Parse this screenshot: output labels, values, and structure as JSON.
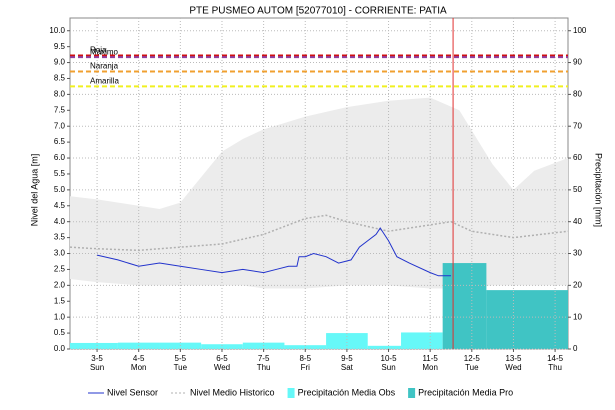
{
  "chart_data": {
    "type": "line",
    "title": "PTE PUSMEO AUTOM  [52077010] - CORRIENTE: PATIA",
    "ylabel": "Nivel del Agua [m]",
    "y2label": "Precipitación [mm]",
    "xlim": [
      2.35,
      14.31
    ],
    "xticks": [
      {
        "value": 3,
        "label": "3-5"
      },
      {
        "value": 4,
        "label": "4-5"
      },
      {
        "value": 5,
        "label": "5-5"
      },
      {
        "value": 6,
        "label": "6-5"
      },
      {
        "value": 7,
        "label": "7-5"
      },
      {
        "value": 8,
        "label": "8-5"
      },
      {
        "value": 9,
        "label": "9-5"
      },
      {
        "value": 10,
        "label": "10-5"
      },
      {
        "value": 11,
        "label": "11-5"
      },
      {
        "value": 12,
        "label": "12-5"
      },
      {
        "value": 13,
        "label": "13-5"
      },
      {
        "value": 14,
        "label": "14-5"
      }
    ],
    "xtick_weekdays": [
      "Sun",
      "Mon",
      "Tue",
      "Wed",
      "Thu",
      "Fri",
      "Sat",
      "Sun",
      "Mon",
      "Tue",
      "Wed",
      "Thu"
    ],
    "ylim": [
      0,
      10.4
    ],
    "yticks": [
      {
        "value": 0,
        "label": "0.0"
      },
      {
        "value": 0.5,
        "label": "0.5"
      },
      {
        "value": 1,
        "label": "1.0"
      },
      {
        "value": 1.5,
        "label": "1.5"
      },
      {
        "value": 2,
        "label": "2.0"
      },
      {
        "value": 2.5,
        "label": "2.5"
      },
      {
        "value": 3,
        "label": "3.0"
      },
      {
        "value": 3.5,
        "label": "3.5"
      },
      {
        "value": 4,
        "label": "4.0"
      },
      {
        "value": 4.5,
        "label": "4.5"
      },
      {
        "value": 5,
        "label": "5.0"
      },
      {
        "value": 5.5,
        "label": "5.5"
      },
      {
        "value": 6,
        "label": "6.0"
      },
      {
        "value": 6.5,
        "label": "6.5"
      },
      {
        "value": 7,
        "label": "7.0"
      },
      {
        "value": 7.5,
        "label": "7.5"
      },
      {
        "value": 8,
        "label": "8.0"
      },
      {
        "value": 8.5,
        "label": "8.5"
      },
      {
        "value": 9,
        "label": "9.0"
      },
      {
        "value": 9.5,
        "label": "9.5"
      },
      {
        "value": 10,
        "label": "10.0"
      }
    ],
    "y2lim": [
      0,
      104
    ],
    "y2ticks": [
      0,
      10,
      20,
      30,
      40,
      50,
      60,
      70,
      80,
      90,
      100
    ],
    "grid": true,
    "now_x": 11.55,
    "now_color": "#e03030",
    "thresholds": [
      {
        "name": "Roja",
        "value": 9.22,
        "color": "#d01010"
      },
      {
        "name": "Máximo",
        "value": 9.17,
        "color": "#9040a0"
      },
      {
        "name": "Naranja",
        "value": 8.72,
        "color": "#f0a030"
      },
      {
        "name": "Amarilla",
        "value": 8.25,
        "color": "#f0f020"
      }
    ],
    "band": {
      "color": "#ececec",
      "x": [
        2.35,
        3,
        4,
        4.5,
        5,
        6,
        6.5,
        7,
        8,
        9,
        10,
        11,
        11.7,
        12.5,
        13,
        13.5,
        14.31
      ],
      "upper": [
        4.8,
        4.7,
        4.5,
        4.4,
        4.6,
        6.2,
        6.6,
        6.9,
        7.3,
        7.6,
        7.8,
        7.9,
        7.5,
        5.8,
        5.0,
        5.6,
        6.0
      ],
      "lower": [
        2.2,
        2.1,
        2.0,
        2.0,
        2.0,
        2.0,
        2.0,
        1.9,
        1.9,
        2.0,
        2.0,
        1.9,
        1.9,
        2.0,
        2.0,
        2.0,
        2.0
      ]
    },
    "series": [
      {
        "name": "Nivel Sensor",
        "color": "#2233cc",
        "style": "solid",
        "x": [
          3,
          3.5,
          4,
          4.5,
          5,
          5.5,
          6,
          6.5,
          7,
          7.3,
          7.6,
          7.8,
          7.85,
          8,
          8.2,
          8.5,
          8.8,
          9.1,
          9.3,
          9.5,
          9.7,
          9.8,
          10,
          10.2,
          10.5,
          11,
          11.2,
          11.5
        ],
        "values": [
          2.95,
          2.8,
          2.6,
          2.7,
          2.6,
          2.5,
          2.4,
          2.5,
          2.4,
          2.5,
          2.6,
          2.6,
          2.9,
          2.9,
          3.0,
          2.9,
          2.7,
          2.8,
          3.2,
          3.4,
          3.6,
          3.8,
          3.4,
          2.9,
          2.7,
          2.4,
          2.3,
          2.3
        ]
      },
      {
        "name": "Nivel Medio Historico",
        "color": "#b0b0b0",
        "style": "dotted",
        "x": [
          2.35,
          3,
          4,
          5,
          6,
          7,
          8,
          8.5,
          9,
          10,
          11,
          11.5,
          12,
          13,
          14.31
        ],
        "values": [
          3.2,
          3.15,
          3.1,
          3.2,
          3.3,
          3.6,
          4.1,
          4.2,
          4.0,
          3.7,
          3.9,
          4.0,
          3.7,
          3.5,
          3.7
        ]
      }
    ],
    "bars": [
      {
        "name": "Precipitación Media Obs",
        "color": "#66f8f8",
        "axis": "y2",
        "bins": [
          2.35,
          3.5,
          4.5,
          5.5,
          6.5,
          7.5,
          8.5,
          9.5,
          10.3,
          11.3
        ],
        "values": [
          1.9,
          2.0,
          2.0,
          1.5,
          2.0,
          1.2,
          5.0,
          1.0,
          5.2
        ]
      },
      {
        "name": "Precipitación Media Pro",
        "color": "#40c4c4",
        "axis": "y2",
        "bins": [
          11.3,
          12.35,
          14.31
        ],
        "values": [
          27,
          18.5
        ]
      }
    ]
  }
}
